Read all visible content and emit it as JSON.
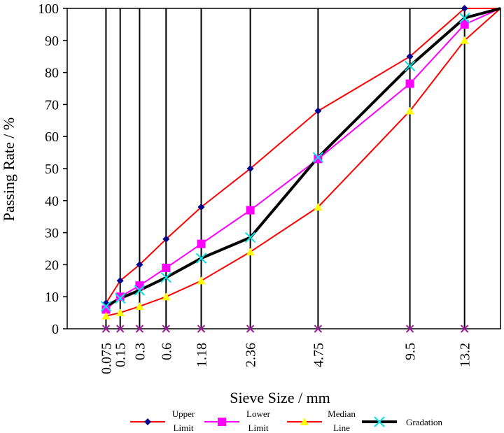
{
  "chart_data": {
    "type": "line",
    "xlabel": "Sieve Size / mm",
    "ylabel": "Passing Rate / %",
    "ylim": [
      0,
      100
    ],
    "yticks": [
      0,
      10,
      20,
      30,
      40,
      50,
      60,
      70,
      80,
      90,
      100
    ],
    "x_scale": "power 0.45",
    "xlim": [
      0,
      16
    ],
    "x": [
      0.075,
      0.15,
      0.3,
      0.6,
      1.18,
      2.36,
      4.75,
      9.5,
      13.2,
      16
    ],
    "x_tick_labels": [
      "0.075",
      "0.15",
      "0.3",
      "0.6",
      "1.18",
      "2.36",
      "4.75",
      "9.5",
      "13.2"
    ],
    "grid": "vertical lines at sieve sizes",
    "legend_position": "bottom",
    "series": [
      {
        "name": "Upper Limit",
        "color": "#ff0000",
        "marker": "diamond",
        "marker_color": "#00008b",
        "line_width": 2,
        "values": [
          8,
          15,
          20,
          28,
          38,
          50,
          68,
          85,
          100,
          100
        ]
      },
      {
        "name": "Lower Limit",
        "color": "#ff00ff",
        "marker": "square",
        "marker_color": "#ff00ff",
        "line_width": 2,
        "values": [
          6,
          10,
          13.5,
          19,
          26.5,
          37,
          53,
          76.5,
          95,
          100
        ]
      },
      {
        "name": "Median Line",
        "color": "#ff0000",
        "marker": "triangle",
        "marker_color": "#ffff00",
        "line_width": 2,
        "values": [
          4,
          5,
          7,
          10,
          15,
          24,
          38,
          68,
          90,
          100
        ]
      },
      {
        "name": "Gradation",
        "color": "#000000",
        "marker": "x",
        "marker_color": "#00e5e5",
        "line_width": 4,
        "values": [
          7,
          9.5,
          12,
          16,
          22,
          28.5,
          53.5,
          82,
          97,
          100
        ]
      }
    ],
    "axis_markers": {
      "marker": "x",
      "color": "#a0209f"
    }
  }
}
